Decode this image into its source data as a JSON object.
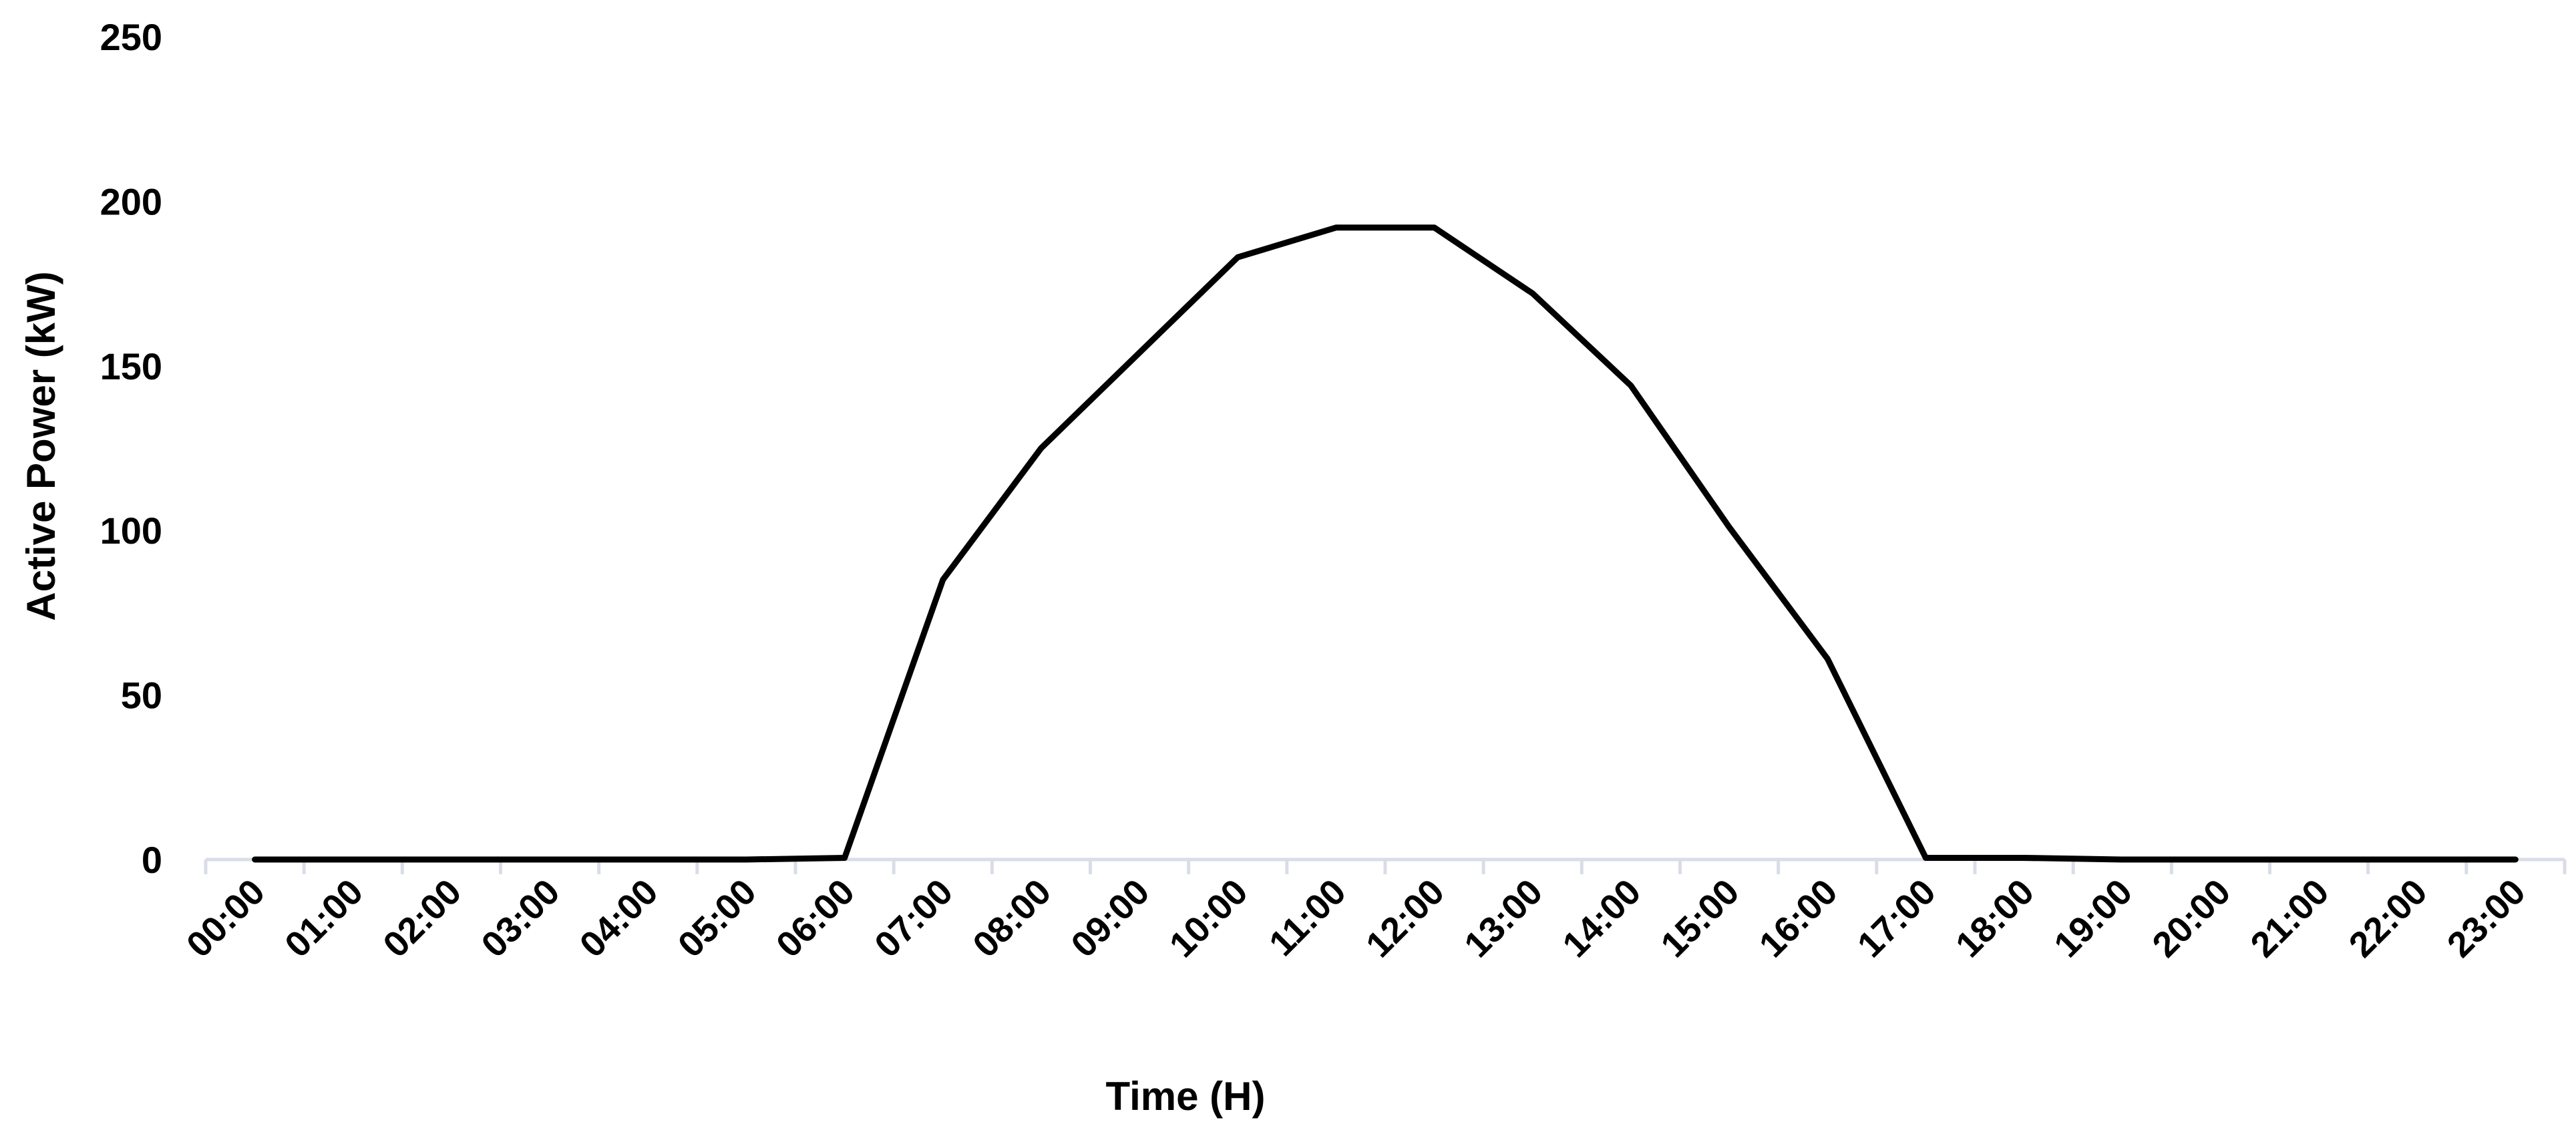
{
  "chart_data": {
    "type": "line",
    "title": "",
    "xlabel": "Time (H)",
    "ylabel": "Active Power (kW)",
    "ylim": [
      0,
      250
    ],
    "yticks": [
      0,
      50,
      100,
      150,
      200,
      250
    ],
    "grid": false,
    "legend": "none",
    "line_color": "#000000",
    "axis_color": "#d9dde8",
    "categories": [
      "00:00",
      "01:00",
      "02:00",
      "03:00",
      "04:00",
      "05:00",
      "06:00",
      "07:00",
      "08:00",
      "09:00",
      "10:00",
      "11:00",
      "12:00",
      "13:00",
      "14:00",
      "15:00",
      "16:00",
      "17:00",
      "18:00",
      "19:00",
      "20:00",
      "21:00",
      "22:00",
      "23:00"
    ],
    "series": [
      {
        "values": [
          0,
          0,
          0,
          0,
          0,
          0,
          0.5,
          85,
          125,
          154,
          183,
          192,
          192,
          172,
          144,
          101,
          61,
          0.5,
          0.5,
          0,
          0,
          0,
          0,
          0
        ]
      }
    ]
  }
}
